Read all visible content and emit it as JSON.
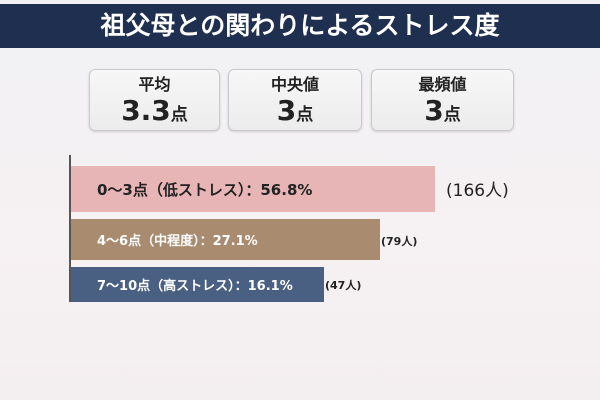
{
  "title": "祖父母との関わりによるストレス度",
  "stats": [
    {
      "label": "平均",
      "value": "3.3",
      "unit": "点"
    },
    {
      "label": "中央値",
      "value": "3",
      "unit": "点"
    },
    {
      "label": "最頻値",
      "value": "3",
      "unit": "点"
    }
  ],
  "chart_data": {
    "type": "bar",
    "orientation": "horizontal",
    "title": "祖父母との関わりによるストレス度",
    "categories": [
      "0〜3点（低ストレス）",
      "4〜6点（中程度）",
      "7〜10点（高ストレス）"
    ],
    "values": [
      56.8,
      27.1,
      16.1
    ],
    "counts": [
      166,
      79,
      47
    ],
    "labels": [
      "0〜3点（低ストレス）：56.8%",
      "4〜6点（中程度）：27.1%",
      "7〜10点（高ストレス）：16.1%"
    ],
    "count_labels": [
      "(166人)",
      "(79人)",
      "(47人)"
    ],
    "colors": [
      "#e8b5b6",
      "#a98b70",
      "#4a6082"
    ]
  }
}
